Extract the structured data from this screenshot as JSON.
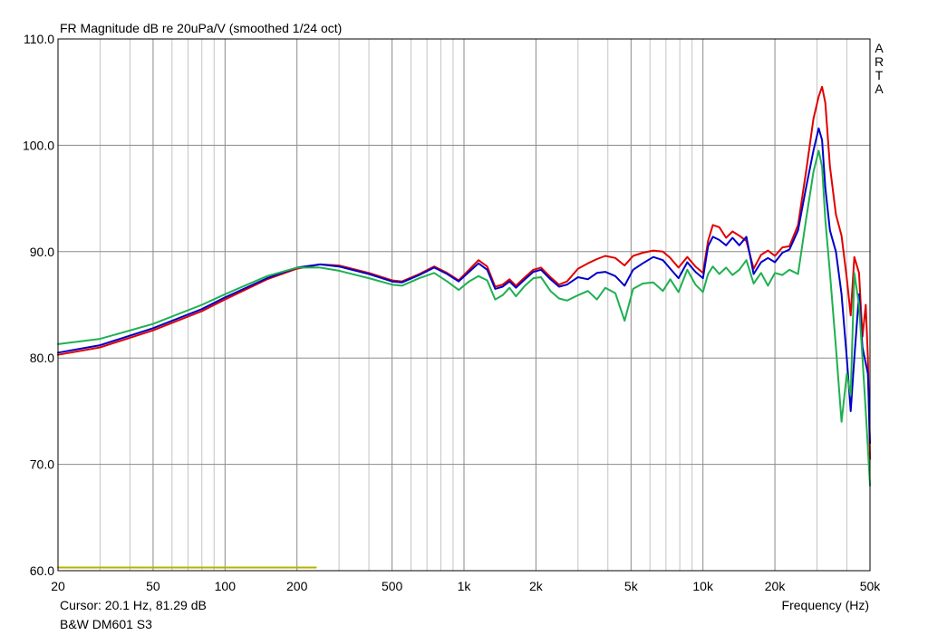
{
  "chart_data": {
    "type": "line",
    "title": "FR Magnitude dB re 20uPa/V (smoothed 1/24 oct)",
    "xlabel": "Frequency (Hz)",
    "ylabel": "",
    "x_scale": "log",
    "xlim": [
      20,
      50000
    ],
    "ylim": [
      60,
      110
    ],
    "y_ticks": [
      "110.0",
      "100.0",
      "90.0",
      "80.0",
      "70.0",
      "60.0"
    ],
    "x_tick_labels": [
      {
        "value": 20,
        "label": "20"
      },
      {
        "value": 50,
        "label": "50"
      },
      {
        "value": 100,
        "label": "100"
      },
      {
        "value": 200,
        "label": "200"
      },
      {
        "value": 500,
        "label": "500"
      },
      {
        "value": 1000,
        "label": "1k"
      },
      {
        "value": 2000,
        "label": "2k"
      },
      {
        "value": 5000,
        "label": "5k"
      },
      {
        "value": 10000,
        "label": "10k"
      },
      {
        "value": 20000,
        "label": "20k"
      },
      {
        "value": 50000,
        "label": "50k"
      }
    ],
    "grid": true,
    "watermark": "ARTA",
    "cursor_text": "Cursor: 20.1 Hz, 81.29 dB",
    "footer_text": "B&W DM601 S3",
    "series": [
      {
        "color": "#e00000",
        "points": [
          [
            20,
            80.3
          ],
          [
            30,
            81.0
          ],
          [
            50,
            82.6
          ],
          [
            80,
            84.4
          ],
          [
            100,
            85.5
          ],
          [
            150,
            87.4
          ],
          [
            200,
            88.4
          ],
          [
            250,
            88.8
          ],
          [
            300,
            88.7
          ],
          [
            400,
            88.0
          ],
          [
            500,
            87.3
          ],
          [
            550,
            87.2
          ],
          [
            650,
            87.9
          ],
          [
            750,
            88.6
          ],
          [
            850,
            88.0
          ],
          [
            950,
            87.3
          ],
          [
            1050,
            88.3
          ],
          [
            1150,
            89.2
          ],
          [
            1250,
            88.6
          ],
          [
            1350,
            86.7
          ],
          [
            1450,
            86.9
          ],
          [
            1550,
            87.4
          ],
          [
            1650,
            86.8
          ],
          [
            1800,
            87.6
          ],
          [
            1950,
            88.3
          ],
          [
            2100,
            88.5
          ],
          [
            2300,
            87.6
          ],
          [
            2500,
            86.9
          ],
          [
            2700,
            87.2
          ],
          [
            3000,
            88.4
          ],
          [
            3300,
            88.9
          ],
          [
            3600,
            89.3
          ],
          [
            3900,
            89.6
          ],
          [
            4300,
            89.4
          ],
          [
            4700,
            88.7
          ],
          [
            5100,
            89.6
          ],
          [
            5600,
            89.9
          ],
          [
            6200,
            90.1
          ],
          [
            6800,
            90.0
          ],
          [
            7300,
            89.4
          ],
          [
            7900,
            88.5
          ],
          [
            8600,
            89.5
          ],
          [
            9300,
            88.6
          ],
          [
            10000,
            88.0
          ],
          [
            10500,
            91.0
          ],
          [
            11000,
            92.5
          ],
          [
            11700,
            92.3
          ],
          [
            12500,
            91.3
          ],
          [
            13300,
            91.9
          ],
          [
            14200,
            91.5
          ],
          [
            15200,
            91.0
          ],
          [
            16300,
            88.4
          ],
          [
            17500,
            89.7
          ],
          [
            18700,
            90.1
          ],
          [
            20000,
            89.6
          ],
          [
            21500,
            90.4
          ],
          [
            23000,
            90.5
          ],
          [
            25000,
            92.5
          ],
          [
            27000,
            97.5
          ],
          [
            29000,
            102.5
          ],
          [
            30500,
            104.6
          ],
          [
            31500,
            105.5
          ],
          [
            32500,
            104.0
          ],
          [
            34000,
            98.0
          ],
          [
            36000,
            93.5
          ],
          [
            38000,
            91.5
          ],
          [
            40000,
            87.5
          ],
          [
            41500,
            84.0
          ],
          [
            43000,
            89.5
          ],
          [
            45000,
            88.0
          ],
          [
            46500,
            82.0
          ],
          [
            48000,
            85.0
          ],
          [
            49000,
            80.0
          ],
          [
            50000,
            70.5
          ]
        ]
      },
      {
        "color": "#0000c8",
        "points": [
          [
            20,
            80.5
          ],
          [
            30,
            81.2
          ],
          [
            50,
            82.8
          ],
          [
            80,
            84.6
          ],
          [
            100,
            85.7
          ],
          [
            150,
            87.5
          ],
          [
            200,
            88.5
          ],
          [
            250,
            88.8
          ],
          [
            300,
            88.6
          ],
          [
            400,
            87.9
          ],
          [
            500,
            87.2
          ],
          [
            550,
            87.1
          ],
          [
            650,
            87.8
          ],
          [
            750,
            88.5
          ],
          [
            850,
            87.9
          ],
          [
            950,
            87.2
          ],
          [
            1050,
            88.1
          ],
          [
            1150,
            88.9
          ],
          [
            1250,
            88.3
          ],
          [
            1350,
            86.5
          ],
          [
            1450,
            86.7
          ],
          [
            1550,
            87.2
          ],
          [
            1650,
            86.6
          ],
          [
            1800,
            87.4
          ],
          [
            1950,
            88.1
          ],
          [
            2100,
            88.3
          ],
          [
            2300,
            87.4
          ],
          [
            2500,
            86.7
          ],
          [
            2700,
            86.9
          ],
          [
            3000,
            87.6
          ],
          [
            3300,
            87.4
          ],
          [
            3600,
            88.0
          ],
          [
            3900,
            88.1
          ],
          [
            4300,
            87.7
          ],
          [
            4700,
            86.8
          ],
          [
            5100,
            88.3
          ],
          [
            5600,
            88.9
          ],
          [
            6200,
            89.5
          ],
          [
            6800,
            89.2
          ],
          [
            7300,
            88.4
          ],
          [
            7900,
            87.5
          ],
          [
            8600,
            89.0
          ],
          [
            9300,
            88.1
          ],
          [
            10000,
            87.5
          ],
          [
            10500,
            90.5
          ],
          [
            11000,
            91.4
          ],
          [
            11700,
            91.1
          ],
          [
            12500,
            90.6
          ],
          [
            13300,
            91.3
          ],
          [
            14200,
            90.6
          ],
          [
            15200,
            91.4
          ],
          [
            16300,
            87.9
          ],
          [
            17500,
            89.0
          ],
          [
            18700,
            89.4
          ],
          [
            20000,
            89.0
          ],
          [
            21500,
            89.9
          ],
          [
            23000,
            90.2
          ],
          [
            25000,
            92.0
          ],
          [
            27000,
            96.0
          ],
          [
            29000,
            99.5
          ],
          [
            30500,
            101.6
          ],
          [
            31500,
            100.5
          ],
          [
            32500,
            96.0
          ],
          [
            34000,
            92.0
          ],
          [
            36000,
            90.0
          ],
          [
            38000,
            86.0
          ],
          [
            40000,
            80.0
          ],
          [
            41500,
            75.0
          ],
          [
            43000,
            80.0
          ],
          [
            45000,
            86.0
          ],
          [
            46500,
            81.0
          ],
          [
            48000,
            79.5
          ],
          [
            49000,
            78.5
          ],
          [
            50000,
            72.0
          ]
        ]
      },
      {
        "color": "#1fb050",
        "points": [
          [
            20,
            81.3
          ],
          [
            30,
            81.8
          ],
          [
            50,
            83.2
          ],
          [
            80,
            85.0
          ],
          [
            100,
            86.0
          ],
          [
            150,
            87.7
          ],
          [
            200,
            88.5
          ],
          [
            250,
            88.5
          ],
          [
            300,
            88.2
          ],
          [
            400,
            87.5
          ],
          [
            500,
            86.9
          ],
          [
            550,
            86.8
          ],
          [
            650,
            87.5
          ],
          [
            750,
            88.0
          ],
          [
            850,
            87.2
          ],
          [
            950,
            86.4
          ],
          [
            1050,
            87.2
          ],
          [
            1150,
            87.7
          ],
          [
            1250,
            87.3
          ],
          [
            1350,
            85.5
          ],
          [
            1450,
            85.9
          ],
          [
            1550,
            86.6
          ],
          [
            1650,
            85.8
          ],
          [
            1800,
            86.8
          ],
          [
            1950,
            87.5
          ],
          [
            2100,
            87.6
          ],
          [
            2300,
            86.3
          ],
          [
            2500,
            85.6
          ],
          [
            2700,
            85.4
          ],
          [
            3000,
            85.9
          ],
          [
            3300,
            86.3
          ],
          [
            3600,
            85.5
          ],
          [
            3900,
            86.6
          ],
          [
            4300,
            86.1
          ],
          [
            4700,
            83.5
          ],
          [
            5100,
            86.5
          ],
          [
            5600,
            87.0
          ],
          [
            6200,
            87.1
          ],
          [
            6800,
            86.3
          ],
          [
            7300,
            87.4
          ],
          [
            7900,
            86.2
          ],
          [
            8600,
            88.3
          ],
          [
            9300,
            86.9
          ],
          [
            10000,
            86.2
          ],
          [
            10500,
            87.9
          ],
          [
            11000,
            88.6
          ],
          [
            11700,
            87.9
          ],
          [
            12500,
            88.5
          ],
          [
            13300,
            87.8
          ],
          [
            14200,
            88.3
          ],
          [
            15200,
            89.2
          ],
          [
            16300,
            87.0
          ],
          [
            17500,
            88.0
          ],
          [
            18700,
            86.8
          ],
          [
            20000,
            88.0
          ],
          [
            21500,
            87.8
          ],
          [
            23000,
            88.3
          ],
          [
            25000,
            87.9
          ],
          [
            27000,
            93.0
          ],
          [
            29000,
            97.5
          ],
          [
            30500,
            99.5
          ],
          [
            31500,
            98.0
          ],
          [
            32500,
            93.0
          ],
          [
            34000,
            88.0
          ],
          [
            36000,
            81.0
          ],
          [
            38000,
            74.0
          ],
          [
            40000,
            78.5
          ],
          [
            41500,
            76.5
          ],
          [
            43000,
            88.0
          ],
          [
            45000,
            85.0
          ],
          [
            46500,
            80.0
          ],
          [
            48000,
            75.0
          ],
          [
            49000,
            71.5
          ],
          [
            50000,
            68.0
          ]
        ]
      },
      {
        "color": "#b4b400",
        "points": [
          [
            20,
            60.3
          ],
          [
            240,
            60.3
          ]
        ]
      }
    ]
  }
}
